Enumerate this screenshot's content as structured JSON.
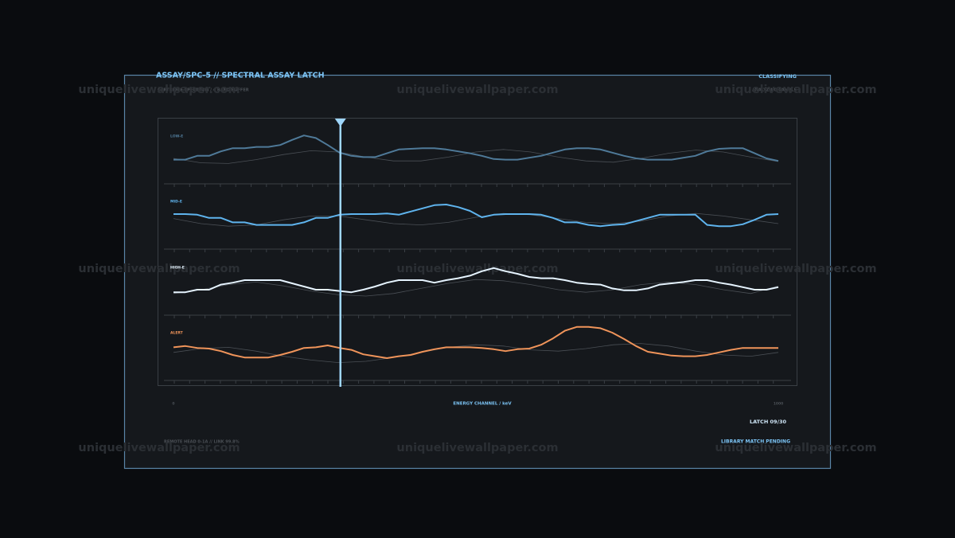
{
  "header": {
    "title": "ASSAY/SPC-5 // SPECTRAL ASSAY LATCH",
    "subtitle": "CARTRIDGE SPECTRUM / 4 BAND BUFFER",
    "status": "CLASSIFYING",
    "status_detail": "ANALYZING SAMPLE"
  },
  "watermark": "uniquelivewallpaper.com",
  "chart_data": {
    "type": "line",
    "x_label": "ENERGY CHANNEL / keV",
    "xlim": [
      0,
      1000
    ],
    "xticks": [
      0,
      1000
    ],
    "cursor": 276,
    "ylim": [
      0,
      100
    ],
    "bands": [
      {
        "label": "LOW-E",
        "color": "#4f7a99",
        "values": [
          38,
          38,
          44,
          44,
          51,
          56,
          56,
          58,
          58,
          61,
          69,
          76,
          72,
          61,
          49,
          44,
          42,
          42,
          48,
          54,
          55,
          56,
          56,
          54,
          51,
          48,
          44,
          39,
          38,
          38,
          41,
          44,
          49,
          54,
          56,
          56,
          54,
          49,
          44,
          40,
          38,
          38,
          38,
          41,
          44,
          51,
          55,
          56,
          56,
          48,
          40,
          36
        ],
        "reference": [
          40,
          33,
          32,
          38,
          46,
          52,
          50,
          42,
          36,
          36,
          42,
          50,
          54,
          50,
          42,
          36,
          34,
          40,
          48,
          53,
          50,
          42,
          35
        ]
      },
      {
        "label": "MID-E",
        "color": "#5fb4ee",
        "values": [
          55,
          55,
          54,
          49,
          49,
          42,
          42,
          38,
          38,
          38,
          38,
          42,
          49,
          49,
          54,
          55,
          55,
          55,
          56,
          54,
          59,
          64,
          69,
          70,
          66,
          60,
          50,
          54,
          55,
          55,
          55,
          54,
          49,
          42,
          42,
          38,
          36,
          38,
          39,
          44,
          49,
          54,
          54,
          54,
          54,
          38,
          36,
          36,
          39,
          46,
          54,
          55
        ],
        "reference": [
          48,
          40,
          36,
          38,
          46,
          52,
          52,
          46,
          40,
          38,
          42,
          50,
          56,
          54,
          48,
          42,
          40,
          44,
          52,
          56,
          52,
          46,
          40
        ]
      },
      {
        "label": "HIGH-E",
        "color": "#e6f4ff",
        "values": [
          36,
          36,
          40,
          40,
          48,
          51,
          55,
          55,
          55,
          55,
          50,
          45,
          40,
          40,
          38,
          36,
          40,
          45,
          51,
          55,
          55,
          55,
          51,
          55,
          58,
          62,
          69,
          74,
          69,
          65,
          60,
          58,
          58,
          55,
          51,
          49,
          48,
          42,
          39,
          39,
          42,
          48,
          50,
          52,
          55,
          55,
          51,
          48,
          44,
          40,
          40,
          44
        ],
        "reference": [
          34,
          40,
          48,
          52,
          46,
          38,
          32,
          30,
          34,
          42,
          50,
          56,
          54,
          48,
          40,
          36,
          40,
          48,
          52,
          48,
          40,
          34,
          46
        ]
      },
      {
        "label": "ALERT",
        "color": "#f0945a",
        "values": [
          52,
          54,
          51,
          50,
          46,
          40,
          36,
          36,
          36,
          40,
          45,
          51,
          52,
          55,
          51,
          48,
          41,
          38,
          35,
          38,
          40,
          45,
          49,
          52,
          52,
          52,
          51,
          49,
          46,
          49,
          50,
          56,
          66,
          78,
          84,
          84,
          82,
          75,
          65,
          54,
          45,
          42,
          39,
          38,
          38,
          40,
          44,
          48,
          51,
          51,
          51,
          51
        ],
        "reference": [
          44,
          50,
          52,
          46,
          38,
          32,
          28,
          30,
          36,
          44,
          52,
          56,
          54,
          48,
          46,
          50,
          56,
          58,
          54,
          46,
          40,
          38,
          44
        ]
      }
    ]
  },
  "footer": {
    "left": "REMOTE HEAD 0-1A // LINK 99.8%",
    "latch": "LATCH 09/30",
    "match": "LIBRARY MATCH PENDING"
  }
}
